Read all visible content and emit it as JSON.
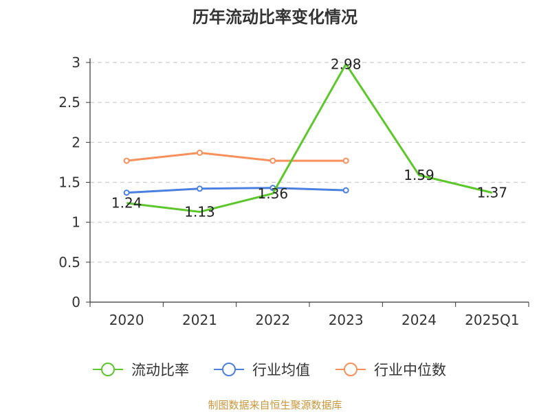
{
  "chart_data": {
    "type": "line",
    "title": "历年流动比率变化情况",
    "categories": [
      "2020",
      "2021",
      "2022",
      "2023",
      "2024",
      "2025Q1"
    ],
    "ylim": [
      0,
      3
    ],
    "yticks": [
      0,
      0.5,
      1,
      1.5,
      2,
      2.5,
      3
    ],
    "ytick_labels": [
      "0",
      "0.5",
      "1",
      "1.5",
      "2",
      "2.5",
      "3"
    ],
    "grid": true,
    "legend_position": "bottom",
    "series": [
      {
        "name": "流动比率",
        "color": "#5cc72a",
        "values": [
          1.24,
          1.13,
          1.36,
          2.98,
          1.59,
          1.37
        ],
        "labels": [
          "1.24",
          "1.13",
          "1.36",
          "2.98",
          "1.59",
          "1.37"
        ],
        "markers": false
      },
      {
        "name": "行业均值",
        "color": "#4a80e0",
        "values": [
          1.37,
          1.42,
          1.43,
          1.4,
          null,
          null
        ],
        "markers": true
      },
      {
        "name": "行业中位数",
        "color": "#f7905a",
        "values": [
          1.77,
          1.87,
          1.77,
          1.77,
          null,
          null
        ],
        "markers": true
      }
    ]
  },
  "source_note": "制图数据来自恒生聚源数据库"
}
